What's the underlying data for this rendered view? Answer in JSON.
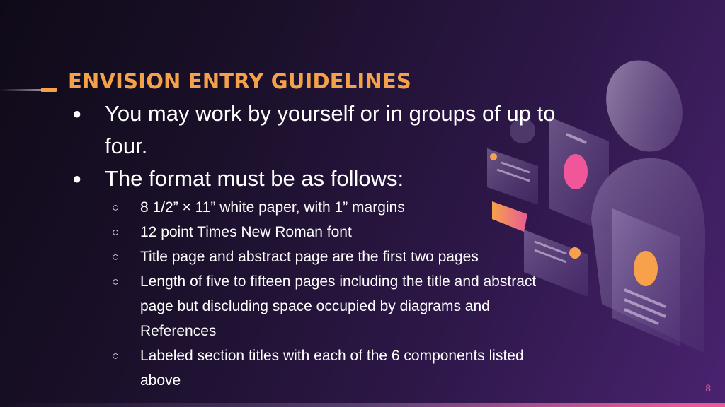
{
  "slide": {
    "title": "ENVISION ENTRY GUIDELINES",
    "bullets": [
      {
        "text": "You may work by yourself or in groups of up to four.",
        "subitems": []
      },
      {
        "text": "The format must be as follows:",
        "subitems": [
          "8 1/2” × 11” white paper, with 1” margins",
          "12 point Times New Roman font",
          "Title page and abstract page are the first two pages",
          "Length of five to fifteen pages including the title and abstract page but discluding space occupied by diagrams and References",
          "Labeled section titles with each of the 6 components listed above"
        ]
      }
    ],
    "bullet_glyph": "●",
    "subbullet_glyph": "○",
    "page_number": "8"
  },
  "colors": {
    "title": "#f4a14a",
    "accent_pink": "#e85a96",
    "accent_orange": "#f7a14a",
    "text": "#ffffff"
  }
}
